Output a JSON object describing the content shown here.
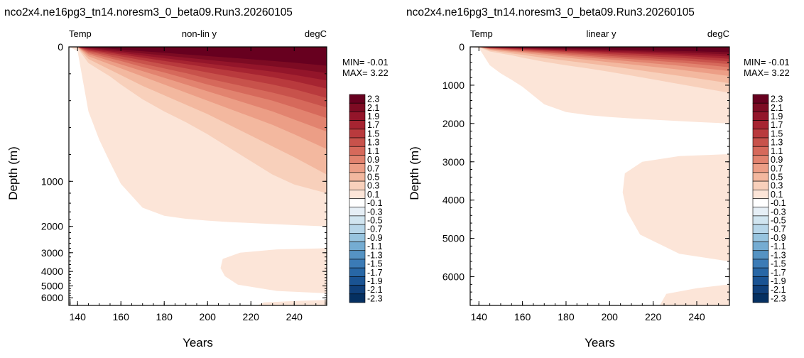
{
  "chart_data": [
    {
      "type": "heatmap",
      "title": "nco2x4.ne16pg3_tn14.noresm3_0_beta09.Run3.20260105",
      "left_label": "Temp",
      "center_label": "non-lin y",
      "right_label": "degC",
      "xlabel": "Years",
      "ylabel": "Depth (m)",
      "xlim": [
        136,
        255
      ],
      "ylim": [
        0,
        6750
      ],
      "y_scale": "non-linear",
      "x_ticks": [
        "140",
        "160",
        "180",
        "200",
        "220",
        "240"
      ],
      "y_ticks": [
        "0",
        "1000",
        "2000",
        "3000",
        "4000",
        "5000",
        "6000"
      ],
      "min_text": "MIN= -0.01",
      "max_text": "MAX=  3.22"
    },
    {
      "type": "heatmap",
      "title": "nco2x4.ne16pg3_tn14.noresm3_0_beta09.Run3.20260105",
      "left_label": "Temp",
      "center_label": "linear y",
      "right_label": "degC",
      "xlabel": "Years",
      "ylabel": "Depth (m)",
      "xlim": [
        136,
        255
      ],
      "ylim": [
        0,
        6750
      ],
      "y_scale": "linear",
      "x_ticks": [
        "140",
        "160",
        "180",
        "200",
        "220",
        "240"
      ],
      "y_ticks": [
        "0",
        "1000",
        "2000",
        "3000",
        "4000",
        "5000",
        "6000"
      ],
      "min_text": "MIN= -0.01",
      "max_text": "MAX=  3.22"
    }
  ],
  "colorbar": {
    "labels": [
      "2.3",
      "2.1",
      "1.9",
      "1.7",
      "1.5",
      "1.3",
      "1.1",
      "0.9",
      "0.7",
      "0.5",
      "0.3",
      "0.1",
      "-0.1",
      "-0.3",
      "-0.5",
      "-0.7",
      "-0.9",
      "-1.1",
      "-1.3",
      "-1.5",
      "-1.7",
      "-1.9",
      "-2.1",
      "-2.3"
    ],
    "colors": [
      "#67001f",
      "#7d0b23",
      "#93152a",
      "#a62431",
      "#b93a3d",
      "#c8524b",
      "#d6695b",
      "#e2836f",
      "#ec9e86",
      "#f3b89f",
      "#f8d0bb",
      "#fce5d8",
      "#ffffff",
      "#e6eff6",
      "#d1e5f0",
      "#b7d6e9",
      "#97c4df",
      "#75acd2",
      "#5593c3",
      "#3b7bb6",
      "#2867a6",
      "#1a5393",
      "#0f3f7a",
      "#053061"
    ]
  }
}
